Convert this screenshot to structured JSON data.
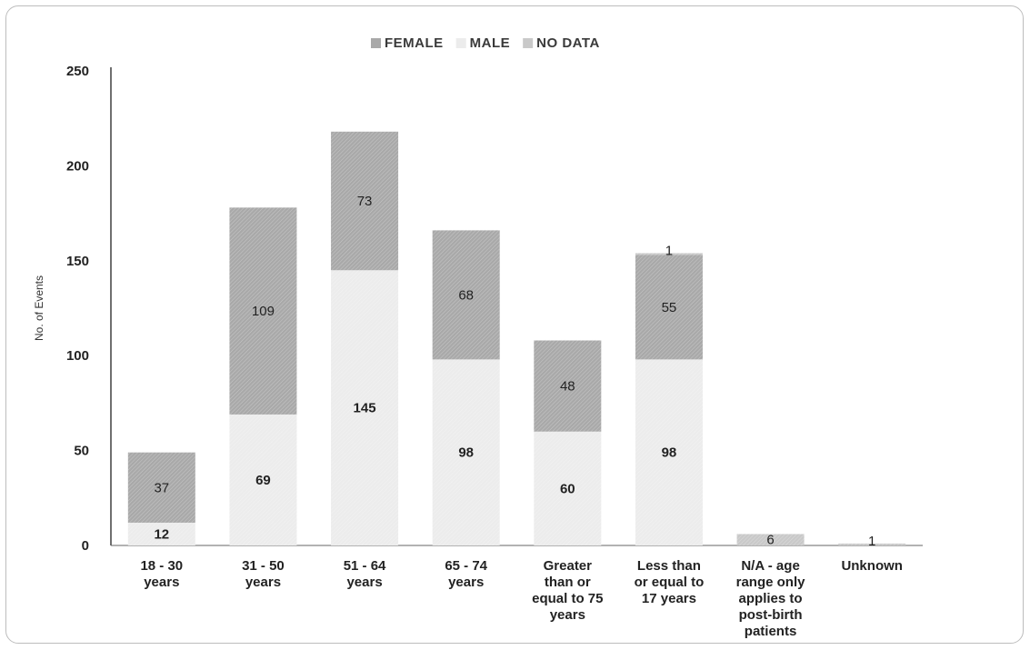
{
  "chart_data": {
    "type": "bar",
    "stacked": true,
    "title": "",
    "xlabel": "",
    "ylabel": "No. of Events",
    "ylim": [
      0,
      250
    ],
    "yticks": [
      0,
      50,
      100,
      150,
      200,
      250
    ],
    "grid": false,
    "legend_position": "top-center",
    "categories": [
      [
        "18 - 30",
        "years"
      ],
      [
        "31 - 50",
        "years"
      ],
      [
        "51 - 64",
        "years"
      ],
      [
        "65 - 74",
        "years"
      ],
      [
        "Greater",
        "than or",
        "equal to 75",
        "years"
      ],
      [
        "Less than",
        "or equal to",
        "17 years"
      ],
      [
        "N/A - age",
        "range only",
        "applies to",
        "post-birth",
        "patients"
      ],
      [
        "Unknown"
      ]
    ],
    "series": [
      {
        "name": "MALE",
        "color": "#ececec",
        "values": [
          12,
          69,
          145,
          98,
          60,
          98,
          0,
          0
        ],
        "labels": [
          "12",
          "69",
          "145",
          "98",
          "60",
          "98",
          "",
          ""
        ]
      },
      {
        "name": "FEMALE",
        "color": "#a9a9a9",
        "values": [
          37,
          109,
          73,
          68,
          48,
          55,
          0,
          0
        ],
        "labels": [
          "37",
          "109",
          "73",
          "68",
          "48",
          "55",
          "",
          ""
        ]
      },
      {
        "name": "NO DATA",
        "color": "#c9c9c9",
        "values": [
          0,
          0,
          0,
          0,
          0,
          1,
          6,
          1
        ],
        "labels": [
          "",
          "",
          "",
          "",
          "",
          "1",
          "6",
          "1"
        ]
      }
    ],
    "legend_order": [
      "FEMALE",
      "MALE",
      "NO DATA"
    ]
  }
}
